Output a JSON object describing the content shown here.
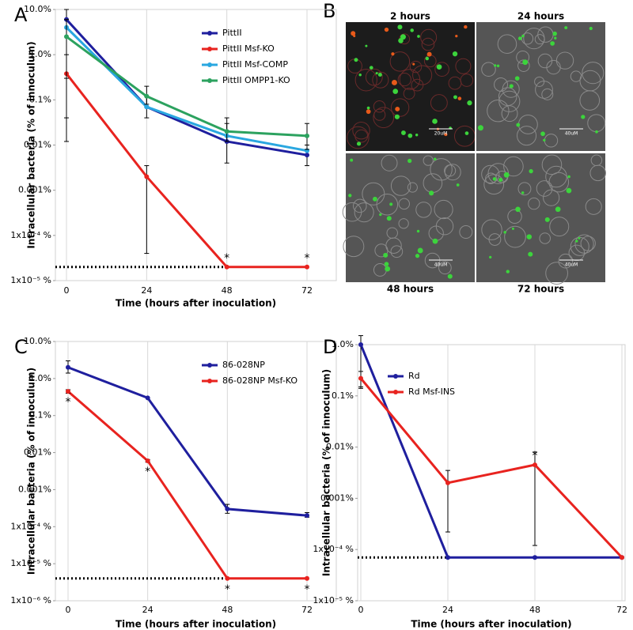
{
  "chart_data": [
    {
      "type": "line",
      "panel_label": "A",
      "log_y": true,
      "grid": true,
      "legend": "upper right",
      "marker_position": "above",
      "y_label": "Intracellular bacteria (% of innoculum)",
      "x_label": "Time (hours after inoculation)",
      "categories": [
        "0",
        "24",
        "48",
        "72"
      ],
      "ylim": [
        1e-05,
        10
      ],
      "yticks": [
        {
          "value": 10,
          "label": "10.0%"
        },
        {
          "value": 1,
          "label": "1.0%"
        },
        {
          "value": 0.1,
          "label": "0.1%"
        },
        {
          "value": 0.01,
          "label": "0.01%"
        },
        {
          "value": 0.001,
          "label": "0.001%"
        },
        {
          "value": 0.0001,
          "label": "1x10⁻⁴ %"
        },
        {
          "value": 1e-05,
          "label": "1x10⁻⁵ %"
        }
      ],
      "detection_limit": 2e-05,
      "series": [
        {
          "name": "PittII",
          "color": "#1f1f9e",
          "values": [
            6,
            0.07,
            0.012,
            0.006
          ],
          "error_bounds": [
            [
              0.04,
              10
            ],
            [
              0.04,
              0.12
            ],
            [
              0.004,
              0.04
            ],
            [
              0.0035,
              0.01
            ]
          ],
          "significance": [
            null,
            null,
            null,
            null
          ]
        },
        {
          "name": "PittII Msf-KO",
          "color": "#e8231f",
          "values": [
            0.38,
            0.002,
            2e-05,
            2e-05
          ],
          "error_bounds": [
            [
              0.012,
              1
            ],
            [
              4e-05,
              0.0035
            ],
            null,
            null
          ],
          "significance": [
            null,
            null,
            "*",
            "*"
          ]
        },
        {
          "name": "PittII Msf-COMP",
          "color": "#2aa7e0",
          "values": [
            4,
            0.07,
            0.016,
            0.0075
          ],
          "error_bounds": [
            null,
            null,
            null,
            null
          ],
          "significance": [
            null,
            null,
            null,
            null
          ]
        },
        {
          "name": "PittII OMPP1-KO",
          "color": "#2ca25f",
          "values": [
            2.5,
            0.12,
            0.02,
            0.016
          ],
          "error_bounds": [
            [
              0.3,
              6
            ],
            [
              0.08,
              0.2
            ],
            [
              0.012,
              0.03
            ],
            [
              0.008,
              0.03
            ]
          ],
          "significance": [
            null,
            null,
            null,
            null
          ]
        }
      ]
    },
    {
      "type": "line",
      "panel_label": "C",
      "log_y": true,
      "grid": true,
      "legend": "upper right",
      "marker_position": "below",
      "y_label": "Intracellular bacteria (% of innoculum)",
      "x_label": "Time (hours after inoculation)",
      "categories": [
        "0",
        "24",
        "48",
        "72"
      ],
      "ylim": [
        1e-06,
        10
      ],
      "yticks": [
        {
          "value": 10,
          "label": "10.0%"
        },
        {
          "value": 1,
          "label": "1.0%"
        },
        {
          "value": 0.1,
          "label": "0.1%"
        },
        {
          "value": 0.01,
          "label": "0.01%"
        },
        {
          "value": 0.001,
          "label": "0.001%"
        },
        {
          "value": 0.0001,
          "label": "1x10⁻⁴ %"
        },
        {
          "value": 1e-05,
          "label": "1x10⁻⁵ %"
        },
        {
          "value": 1e-06,
          "label": "1x10⁻⁶ %"
        }
      ],
      "detection_limit": 4e-06,
      "series": [
        {
          "name": "86-028NP",
          "color": "#1f1f9e",
          "values": [
            2,
            0.3,
            0.0003,
            0.0002
          ],
          "error_bounds": [
            [
              1.4,
              3
            ],
            null,
            [
              0.00023,
              0.0004
            ],
            [
              0.00018,
              0.00024
            ]
          ],
          "significance": [
            null,
            null,
            null,
            null
          ]
        },
        {
          "name": "86-028NP Msf-KO",
          "color": "#e8231f",
          "values": [
            0.45,
            0.006,
            4e-06,
            4e-06
          ],
          "error_bounds": [
            [
              0.4,
              0.5
            ],
            [
              0.0055,
              0.0065
            ],
            null,
            null
          ],
          "significance": [
            "*",
            "*",
            "*",
            "*"
          ]
        }
      ]
    },
    {
      "type": "line",
      "panel_label": "D",
      "log_y": true,
      "grid": true,
      "legend": "upper left",
      "marker_position": "above",
      "y_label": "Intracellular bacteria (% of innoculum)",
      "x_label": "Time (hours after inoculation)",
      "categories": [
        "0",
        "24",
        "48",
        "72"
      ],
      "ylim": [
        1e-05,
        1
      ],
      "yticks": [
        {
          "value": 1,
          "label": "1.0%"
        },
        {
          "value": 0.1,
          "label": "0.1%"
        },
        {
          "value": 0.01,
          "label": "0.01%"
        },
        {
          "value": 0.001,
          "label": "0.001%"
        },
        {
          "value": 0.0001,
          "label": "1x10⁻⁴ %"
        },
        {
          "value": 1e-05,
          "label": "1x10⁻⁵ %"
        }
      ],
      "detection_limit": 7e-05,
      "series": [
        {
          "name": "Rd",
          "color": "#1f1f9e",
          "values": [
            1,
            7e-05,
            7e-05,
            7e-05
          ],
          "error_bounds": [
            [
              0.15,
              1.5
            ],
            null,
            null,
            null
          ],
          "significance": [
            null,
            null,
            null,
            null
          ]
        },
        {
          "name": "Rd Msf-INS",
          "color": "#e8231f",
          "values": [
            0.22,
            0.002,
            0.0045,
            7e-05
          ],
          "error_bounds": [
            [
              0.14,
              0.3
            ],
            [
              0.00022,
              0.0035
            ],
            [
              0.00012,
              0.008
            ],
            null
          ],
          "significance": [
            null,
            null,
            "*",
            null
          ]
        }
      ]
    }
  ],
  "image_panel": {
    "panel_label": "B",
    "images": [
      {
        "title": "2 hours",
        "scale_bar": "20uM"
      },
      {
        "title": "24 hours",
        "scale_bar": "40uM"
      },
      {
        "title": "48 hours",
        "scale_bar": "40uM"
      },
      {
        "title": "72 hours",
        "scale_bar": "40uM"
      }
    ]
  }
}
